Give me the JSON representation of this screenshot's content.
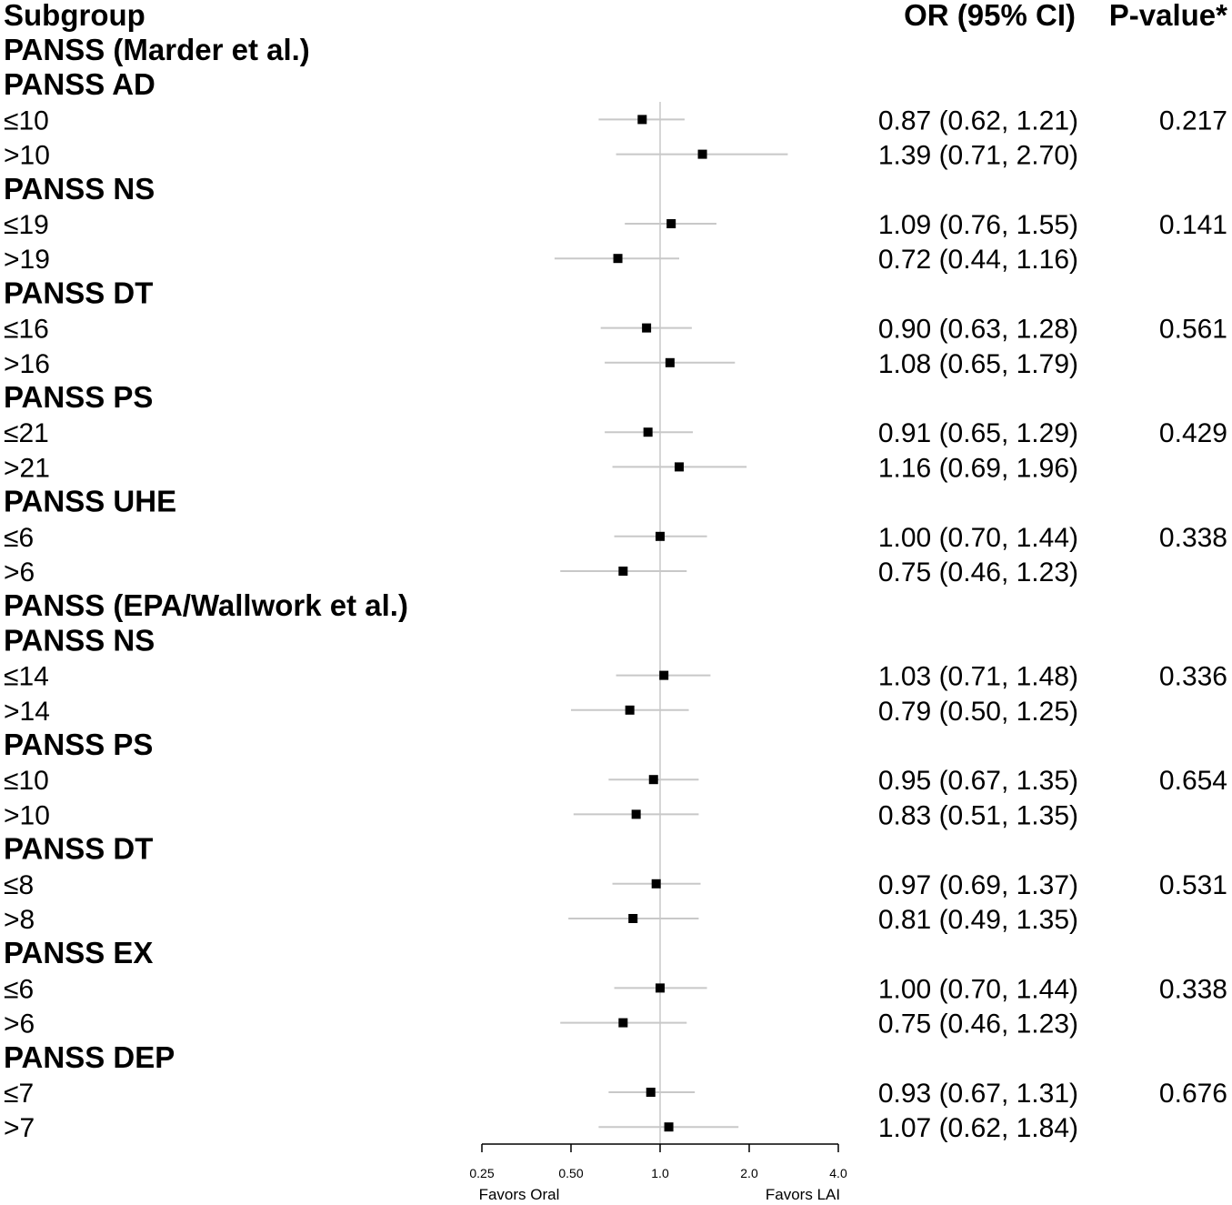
{
  "header": {
    "subgroup": "Subgroup",
    "or_ci": "OR (95% CI)",
    "p_value": "P-value*"
  },
  "axis": {
    "ticks": [
      {
        "value": 0.25,
        "label": "0.25"
      },
      {
        "value": 0.5,
        "label": "0.50"
      },
      {
        "value": 1.0,
        "label": "1.0"
      },
      {
        "value": 2.0,
        "label": "2.0"
      },
      {
        "value": 4.0,
        "label": "4.0"
      }
    ],
    "scale": "log",
    "range": [
      0.25,
      4.0
    ],
    "reference": 1.0,
    "favors_left": "Favors Oral",
    "favors_right": "Favors LAI"
  },
  "chart_data": {
    "type": "forest",
    "xscale": "log",
    "xlim": [
      0.25,
      4.0
    ],
    "rows": [
      {
        "kind": "section",
        "label": "PANSS (Marder et al.)"
      },
      {
        "kind": "group",
        "label": "PANSS AD"
      },
      {
        "kind": "level",
        "label": "≤10",
        "or": 0.87,
        "lo": 0.62,
        "hi": 1.21,
        "text": "0.87 (0.62, 1.21)",
        "p": "0.217"
      },
      {
        "kind": "level",
        "label": ">10",
        "or": 1.39,
        "lo": 0.71,
        "hi": 2.7,
        "text": "1.39 (0.71, 2.70)",
        "p": ""
      },
      {
        "kind": "group",
        "label": "PANSS NS"
      },
      {
        "kind": "level",
        "label": "≤19",
        "or": 1.09,
        "lo": 0.76,
        "hi": 1.55,
        "text": "1.09 (0.76, 1.55)",
        "p": "0.141"
      },
      {
        "kind": "level",
        "label": ">19",
        "or": 0.72,
        "lo": 0.44,
        "hi": 1.16,
        "text": "0.72 (0.44, 1.16)",
        "p": ""
      },
      {
        "kind": "group",
        "label": "PANSS DT"
      },
      {
        "kind": "level",
        "label": "≤16",
        "or": 0.9,
        "lo": 0.63,
        "hi": 1.28,
        "text": "0.90 (0.63, 1.28)",
        "p": "0.561"
      },
      {
        "kind": "level",
        "label": ">16",
        "or": 1.08,
        "lo": 0.65,
        "hi": 1.79,
        "text": "1.08 (0.65, 1.79)",
        "p": ""
      },
      {
        "kind": "group",
        "label": "PANSS PS"
      },
      {
        "kind": "level",
        "label": "≤21",
        "or": 0.91,
        "lo": 0.65,
        "hi": 1.29,
        "text": "0.91 (0.65, 1.29)",
        "p": "0.429"
      },
      {
        "kind": "level",
        "label": ">21",
        "or": 1.16,
        "lo": 0.69,
        "hi": 1.96,
        "text": "1.16 (0.69, 1.96)",
        "p": ""
      },
      {
        "kind": "group",
        "label": "PANSS UHE"
      },
      {
        "kind": "level",
        "label": "≤6",
        "or": 1.0,
        "lo": 0.7,
        "hi": 1.44,
        "text": "1.00 (0.70, 1.44)",
        "p": "0.338"
      },
      {
        "kind": "level",
        "label": ">6",
        "or": 0.75,
        "lo": 0.46,
        "hi": 1.23,
        "text": "0.75 (0.46, 1.23)",
        "p": ""
      },
      {
        "kind": "section",
        "label": "PANSS (EPA/Wallwork et al.)"
      },
      {
        "kind": "group",
        "label": "PANSS NS"
      },
      {
        "kind": "level",
        "label": "≤14",
        "or": 1.03,
        "lo": 0.71,
        "hi": 1.48,
        "text": "1.03 (0.71, 1.48)",
        "p": "0.336"
      },
      {
        "kind": "level",
        "label": ">14",
        "or": 0.79,
        "lo": 0.5,
        "hi": 1.25,
        "text": "0.79 (0.50, 1.25)",
        "p": ""
      },
      {
        "kind": "group",
        "label": "PANSS PS"
      },
      {
        "kind": "level",
        "label": "≤10",
        "or": 0.95,
        "lo": 0.67,
        "hi": 1.35,
        "text": "0.95 (0.67, 1.35)",
        "p": "0.654"
      },
      {
        "kind": "level",
        "label": ">10",
        "or": 0.83,
        "lo": 0.51,
        "hi": 1.35,
        "text": "0.83 (0.51, 1.35)",
        "p": ""
      },
      {
        "kind": "group",
        "label": "PANSS DT"
      },
      {
        "kind": "level",
        "label": "≤8",
        "or": 0.97,
        "lo": 0.69,
        "hi": 1.37,
        "text": "0.97 (0.69, 1.37)",
        "p": "0.531"
      },
      {
        "kind": "level",
        "label": ">8",
        "or": 0.81,
        "lo": 0.49,
        "hi": 1.35,
        "text": "0.81 (0.49, 1.35)",
        "p": ""
      },
      {
        "kind": "group",
        "label": "PANSS EX"
      },
      {
        "kind": "level",
        "label": "≤6",
        "or": 1.0,
        "lo": 0.7,
        "hi": 1.44,
        "text": "1.00 (0.70, 1.44)",
        "p": "0.338"
      },
      {
        "kind": "level",
        "label": ">6",
        "or": 0.75,
        "lo": 0.46,
        "hi": 1.23,
        "text": "0.75 (0.46, 1.23)",
        "p": ""
      },
      {
        "kind": "group",
        "label": "PANSS DEP"
      },
      {
        "kind": "level",
        "label": "≤7",
        "or": 0.93,
        "lo": 0.67,
        "hi": 1.31,
        "text": "0.93 (0.67, 1.31)",
        "p": "0.676"
      },
      {
        "kind": "level",
        "label": ">7",
        "or": 1.07,
        "lo": 0.62,
        "hi": 1.84,
        "text": "1.07 (0.62, 1.84)",
        "p": ""
      }
    ]
  },
  "colors": {
    "marker": "#000000",
    "ci_line": "#c8c8c8",
    "reference_line": "#c8c8c8",
    "axis": "#000000"
  }
}
